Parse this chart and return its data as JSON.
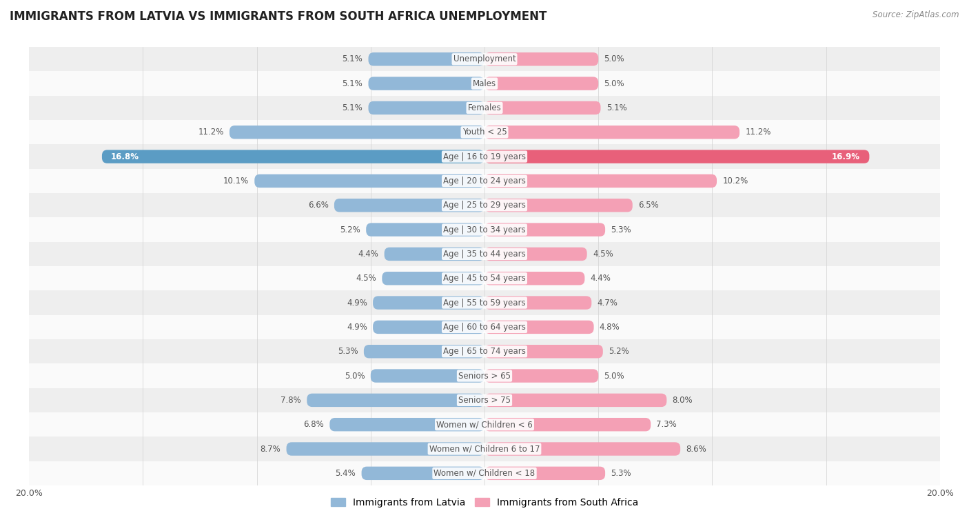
{
  "title": "IMMIGRANTS FROM LATVIA VS IMMIGRANTS FROM SOUTH AFRICA UNEMPLOYMENT",
  "source": "Source: ZipAtlas.com",
  "categories": [
    "Unemployment",
    "Males",
    "Females",
    "Youth < 25",
    "Age | 16 to 19 years",
    "Age | 20 to 24 years",
    "Age | 25 to 29 years",
    "Age | 30 to 34 years",
    "Age | 35 to 44 years",
    "Age | 45 to 54 years",
    "Age | 55 to 59 years",
    "Age | 60 to 64 years",
    "Age | 65 to 74 years",
    "Seniors > 65",
    "Seniors > 75",
    "Women w/ Children < 6",
    "Women w/ Children 6 to 17",
    "Women w/ Children < 18"
  ],
  "latvia_values": [
    5.1,
    5.1,
    5.1,
    11.2,
    16.8,
    10.1,
    6.6,
    5.2,
    4.4,
    4.5,
    4.9,
    4.9,
    5.3,
    5.0,
    7.8,
    6.8,
    8.7,
    5.4
  ],
  "south_africa_values": [
    5.0,
    5.0,
    5.1,
    11.2,
    16.9,
    10.2,
    6.5,
    5.3,
    4.5,
    4.4,
    4.7,
    4.8,
    5.2,
    5.0,
    8.0,
    7.3,
    8.6,
    5.3
  ],
  "max_value": 20.0,
  "latvia_color": "#92b8d8",
  "south_africa_color": "#f4a0b5",
  "latvia_highlight_color": "#5b9cc4",
  "south_africa_highlight_color": "#e8607a",
  "row_bg_colors": [
    "#eeeeee",
    "#fafafa"
  ],
  "label_color": "#555555",
  "title_color": "#222222",
  "legend_latvia": "Immigrants from Latvia",
  "legend_south_africa": "Immigrants from South Africa"
}
